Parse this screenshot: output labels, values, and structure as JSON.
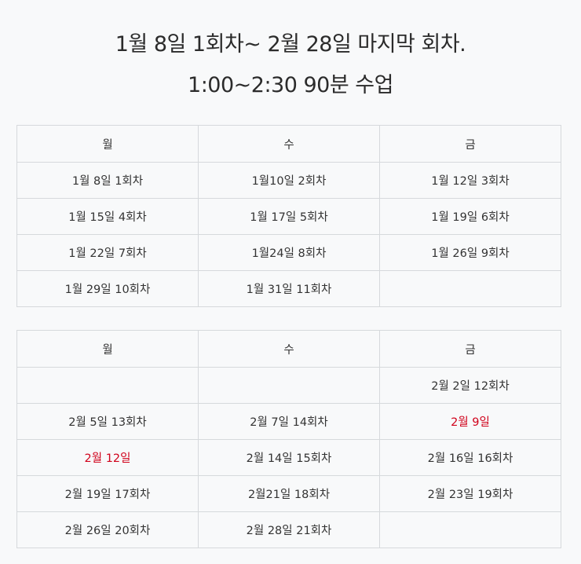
{
  "header": {
    "line1": "1월 8일 1회차~ 2월 28일 마지막 회차.",
    "line2": "1:00~2:30 90분 수업"
  },
  "colors": {
    "holiday": "#d0021b",
    "text": "#333333",
    "border": "#d6d9dc",
    "background": "#f8f9fa"
  },
  "january": {
    "headers": [
      "월",
      "수",
      "금"
    ],
    "rows": [
      [
        "1월 8일 1회차",
        "1월10일 2회차",
        "1월 12일 3회차"
      ],
      [
        "1월 15일 4회차",
        "1월 17일 5회차",
        "1월 19일 6회차"
      ],
      [
        "1월 22일 7회차",
        "1월24일 8회차",
        "1월 26일 9회차"
      ],
      [
        "1월 29일 10회차",
        "1월 31일 11회차",
        ""
      ]
    ]
  },
  "february": {
    "headers": [
      "월",
      "수",
      "금"
    ],
    "rows": [
      [
        "",
        "",
        "2월 2일 12회차"
      ],
      [
        "2월 5일 13회차",
        "2월 7일 14회차",
        "2월 9일"
      ],
      [
        "2월 12일",
        "2월 14일 15회차",
        "2월 16일 16회차"
      ],
      [
        "2월 19일 17회차",
        "2월21일 18회차",
        "2월 23일 19회차"
      ],
      [
        "2월 26일 20회차",
        "2월 28일 21회차",
        ""
      ]
    ]
  }
}
